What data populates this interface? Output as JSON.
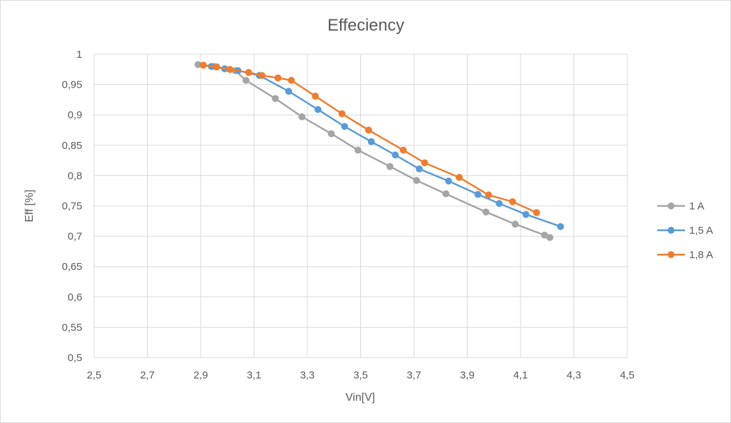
{
  "chart_data": {
    "type": "line",
    "title": "Effeciency",
    "xlabel": "Vin[V]",
    "ylabel": "Eff [%]",
    "xlim": [
      2.5,
      4.5
    ],
    "ylim": [
      0.5,
      1.0
    ],
    "x_ticks": [
      "2,5",
      "2,7",
      "2,9",
      "3,1",
      "3,3",
      "3,5",
      "3,7",
      "3,9",
      "4,1",
      "4,3",
      "4,5"
    ],
    "y_ticks": [
      "0,5",
      "0,55",
      "0,6",
      "0,65",
      "0,7",
      "0,75",
      "0,8",
      "0,85",
      "0,9",
      "0,95",
      "1"
    ],
    "grid": true,
    "legend_position": "right",
    "series": [
      {
        "name": "1 A",
        "color": "#a5a5a5",
        "points": [
          [
            2.89,
            0.983
          ],
          [
            2.95,
            0.98
          ],
          [
            3.03,
            0.973
          ],
          [
            3.07,
            0.957
          ],
          [
            3.18,
            0.927
          ],
          [
            3.28,
            0.897
          ],
          [
            3.39,
            0.869
          ],
          [
            3.49,
            0.842
          ],
          [
            3.61,
            0.815
          ],
          [
            3.71,
            0.792
          ],
          [
            3.82,
            0.77
          ],
          [
            3.97,
            0.74
          ],
          [
            4.08,
            0.72
          ],
          [
            4.19,
            0.702
          ],
          [
            4.21,
            0.698
          ]
        ]
      },
      {
        "name": "1,5 A",
        "color": "#5b9bd5",
        "points": [
          [
            2.94,
            0.98
          ],
          [
            2.99,
            0.976
          ],
          [
            3.04,
            0.973
          ],
          [
            3.12,
            0.965
          ],
          [
            3.23,
            0.939
          ],
          [
            3.34,
            0.909
          ],
          [
            3.44,
            0.881
          ],
          [
            3.54,
            0.856
          ],
          [
            3.63,
            0.834
          ],
          [
            3.72,
            0.811
          ],
          [
            3.83,
            0.791
          ],
          [
            3.94,
            0.769
          ],
          [
            4.02,
            0.754
          ],
          [
            4.12,
            0.736
          ],
          [
            4.25,
            0.716
          ]
        ]
      },
      {
        "name": "1,8 A",
        "color": "#ed7d31",
        "points": [
          [
            2.91,
            0.982
          ],
          [
            2.96,
            0.979
          ],
          [
            3.01,
            0.975
          ],
          [
            3.08,
            0.97
          ],
          [
            3.13,
            0.965
          ],
          [
            3.19,
            0.961
          ],
          [
            3.24,
            0.957
          ],
          [
            3.33,
            0.931
          ],
          [
            3.43,
            0.902
          ],
          [
            3.53,
            0.875
          ],
          [
            3.66,
            0.842
          ],
          [
            3.74,
            0.821
          ],
          [
            3.87,
            0.797
          ],
          [
            3.98,
            0.768
          ],
          [
            4.07,
            0.757
          ],
          [
            4.16,
            0.739
          ]
        ]
      }
    ]
  }
}
